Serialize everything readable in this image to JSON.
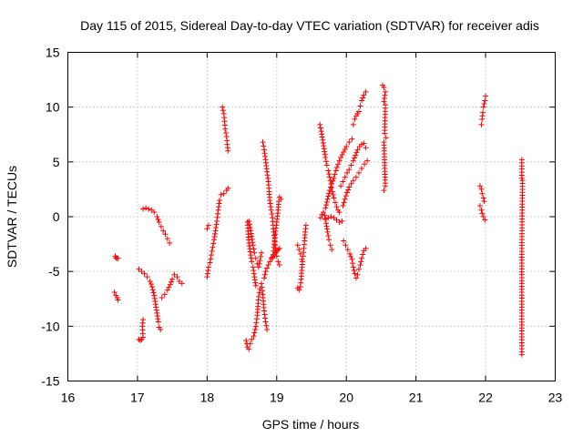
{
  "chart_data": {
    "type": "scatter",
    "title": "Day 115 of 2015, Sidereal Day-to-day VTEC variation (SDTVAR) for receiver adis",
    "xlabel": "GPS time / hours",
    "ylabel": "SDTVAR / TECUs",
    "xlim": [
      16,
      23
    ],
    "ylim": [
      -15,
      15
    ],
    "xticks": [
      "16",
      "17",
      "18",
      "19",
      "20",
      "21",
      "22",
      "23"
    ],
    "yticks": [
      "-15",
      "-10",
      "-5",
      "0",
      "5",
      "10",
      "15"
    ],
    "grid": true,
    "marker": "plus",
    "color": "#ff0000",
    "segments": [
      [
        [
          16.68,
          -3.6
        ],
        [
          16.69,
          -3.75
        ],
        [
          16.7,
          -3.8
        ],
        [
          16.72,
          -3.8
        ]
      ],
      [
        [
          16.67,
          -6.9
        ],
        [
          16.69,
          -7.2
        ],
        [
          16.71,
          -7.4
        ],
        [
          16.72,
          -7.6
        ]
      ],
      [
        [
          17.02,
          -11.2
        ],
        [
          17.04,
          -11.3
        ],
        [
          17.06,
          -11.2
        ],
        [
          17.08,
          -11.0
        ],
        [
          17.07,
          -10.0
        ],
        [
          17.08,
          -9.4
        ]
      ],
      [
        [
          17.02,
          -4.8
        ],
        [
          17.06,
          -5.0
        ],
        [
          17.1,
          -5.2
        ],
        [
          17.14,
          -5.5
        ],
        [
          17.18,
          -5.9
        ],
        [
          17.21,
          -6.4
        ],
        [
          17.24,
          -7.2
        ],
        [
          17.26,
          -8.0
        ],
        [
          17.28,
          -8.8
        ],
        [
          17.3,
          -9.6
        ],
        [
          17.31,
          -10.1
        ],
        [
          17.33,
          -10.3
        ]
      ],
      [
        [
          17.08,
          0.7
        ],
        [
          17.12,
          0.8
        ],
        [
          17.16,
          0.7
        ],
        [
          17.2,
          0.6
        ],
        [
          17.24,
          0.4
        ],
        [
          17.28,
          0.0
        ],
        [
          17.31,
          -0.5
        ],
        [
          17.34,
          -0.9
        ],
        [
          17.37,
          -1.3
        ],
        [
          17.4,
          -1.6
        ],
        [
          17.43,
          -2.0
        ],
        [
          17.46,
          -2.4
        ]
      ],
      [
        [
          17.35,
          -7.4
        ],
        [
          17.39,
          -7.1
        ],
        [
          17.43,
          -6.7
        ],
        [
          17.47,
          -6.2
        ],
        [
          17.5,
          -5.7
        ],
        [
          17.53,
          -5.3
        ],
        [
          17.57,
          -5.5
        ],
        [
          17.6,
          -5.9
        ],
        [
          17.64,
          -6.1
        ]
      ],
      [
        [
          18.0,
          -5.5
        ],
        [
          18.02,
          -4.6
        ],
        [
          18.04,
          -4.2
        ],
        [
          18.06,
          -3.5
        ],
        [
          18.08,
          -2.8
        ],
        [
          18.1,
          -2.1
        ],
        [
          18.12,
          -1.3
        ],
        [
          18.14,
          -0.4
        ],
        [
          18.16,
          0.6
        ],
        [
          18.18,
          1.5
        ],
        [
          18.2,
          2.0
        ],
        [
          18.24,
          2.1
        ],
        [
          18.28,
          2.4
        ],
        [
          18.3,
          2.6
        ]
      ],
      [
        [
          18.0,
          -1.1
        ],
        [
          18.02,
          -0.8
        ]
      ],
      [
        [
          18.22,
          10.0
        ],
        [
          18.24,
          9.4
        ],
        [
          18.25,
          8.7
        ],
        [
          18.26,
          8.0
        ],
        [
          18.28,
          7.3
        ],
        [
          18.29,
          6.6
        ],
        [
          18.3,
          6.0
        ]
      ],
      [
        [
          18.56,
          -11.3
        ],
        [
          18.58,
          -11.9
        ],
        [
          18.6,
          -12.1
        ],
        [
          18.62,
          -11.6
        ],
        [
          18.64,
          -11.2
        ],
        [
          18.67,
          -10.9
        ],
        [
          18.7,
          -10.0
        ],
        [
          18.72,
          -9.0
        ],
        [
          18.73,
          -8.2
        ],
        [
          18.74,
          -7.3
        ],
        [
          18.76,
          -6.6
        ],
        [
          18.78,
          -6.1
        ],
        [
          18.8,
          -7.1
        ],
        [
          18.82,
          -8.6
        ],
        [
          18.84,
          -9.6
        ],
        [
          18.86,
          -10.3
        ]
      ],
      [
        [
          18.58,
          -0.5
        ],
        [
          18.59,
          -1.6
        ],
        [
          18.6,
          -2.4
        ],
        [
          18.62,
          -3.2
        ],
        [
          18.64,
          -4.1
        ],
        [
          18.66,
          -4.6
        ],
        [
          18.68,
          -5.5
        ],
        [
          18.7,
          -6.3
        ]
      ],
      [
        [
          18.6,
          -0.4
        ],
        [
          18.62,
          -1.0
        ],
        [
          18.64,
          -1.8
        ],
        [
          18.66,
          -2.6
        ],
        [
          18.68,
          -3.3
        ],
        [
          18.7,
          -3.8
        ],
        [
          18.72,
          -4.3
        ],
        [
          18.74,
          -4.6
        ],
        [
          18.76,
          -4.0
        ],
        [
          18.78,
          -3.3
        ]
      ],
      [
        [
          18.8,
          6.8
        ],
        [
          18.82,
          6.1
        ],
        [
          18.84,
          5.2
        ],
        [
          18.86,
          4.1
        ],
        [
          18.88,
          3.2
        ],
        [
          18.89,
          2.3
        ],
        [
          18.9,
          1.5
        ],
        [
          18.92,
          0.6
        ],
        [
          18.94,
          -0.1
        ],
        [
          18.95,
          -1.1
        ],
        [
          18.97,
          -2.0
        ],
        [
          18.98,
          -2.9
        ],
        [
          19.0,
          -3.6
        ],
        [
          19.02,
          -4.1
        ],
        [
          19.04,
          -4.4
        ]
      ],
      [
        [
          18.82,
          -5.6
        ],
        [
          18.84,
          -5.0
        ],
        [
          18.86,
          -4.7
        ],
        [
          18.88,
          -4.4
        ],
        [
          18.9,
          -4.1
        ],
        [
          18.92,
          -3.8
        ],
        [
          18.94,
          -3.7
        ],
        [
          18.96,
          -3.5
        ],
        [
          18.98,
          -3.3
        ],
        [
          19.0,
          -3.1
        ],
        [
          19.02,
          -3.0
        ],
        [
          19.04,
          -2.9
        ]
      ],
      [
        [
          18.94,
          -3.8
        ],
        [
          18.96,
          -2.8
        ],
        [
          18.98,
          -1.6
        ],
        [
          19.0,
          -0.5
        ],
        [
          19.02,
          0.6
        ],
        [
          19.03,
          1.4
        ],
        [
          19.04,
          1.8
        ],
        [
          19.06,
          1.6
        ]
      ],
      [
        [
          19.3,
          -6.5
        ],
        [
          19.32,
          -6.7
        ],
        [
          19.34,
          -6.4
        ],
        [
          19.35,
          -5.7
        ],
        [
          19.36,
          -4.9
        ],
        [
          19.37,
          -4.1
        ],
        [
          19.38,
          -3.6
        ],
        [
          19.39,
          -2.9
        ],
        [
          19.4,
          -2.2
        ],
        [
          19.41,
          -1.4
        ],
        [
          19.42,
          -0.8
        ]
      ],
      [
        [
          19.3,
          -2.6
        ],
        [
          19.32,
          -3.0
        ],
        [
          19.34,
          -3.4
        ],
        [
          19.36,
          -3.9
        ]
      ],
      [
        [
          19.62,
          8.4
        ],
        [
          19.64,
          7.8
        ],
        [
          19.66,
          7.0
        ],
        [
          19.68,
          6.2
        ],
        [
          19.7,
          5.4
        ],
        [
          19.72,
          4.7
        ],
        [
          19.74,
          4.2
        ],
        [
          19.76,
          3.6
        ],
        [
          19.78,
          3.0
        ],
        [
          19.8,
          2.3
        ],
        [
          19.82,
          1.7
        ],
        [
          19.84,
          1.3
        ],
        [
          19.86,
          0.9
        ],
        [
          19.88,
          0.6
        ],
        [
          19.9,
          0.4
        ]
      ],
      [
        [
          19.63,
          -0.1
        ],
        [
          19.65,
          0.2
        ],
        [
          19.67,
          0.4
        ],
        [
          19.69,
          0.1
        ],
        [
          19.71,
          -0.6
        ],
        [
          19.73,
          -1.4
        ],
        [
          19.75,
          -2.1
        ],
        [
          19.77,
          -2.6
        ],
        [
          19.79,
          -3.0
        ]
      ],
      [
        [
          19.7,
          0.8
        ],
        [
          19.73,
          1.6
        ],
        [
          19.76,
          2.4
        ],
        [
          19.79,
          3.0
        ],
        [
          19.82,
          3.5
        ],
        [
          19.85,
          4.2
        ],
        [
          19.88,
          4.8
        ],
        [
          19.92,
          5.4
        ],
        [
          19.96,
          5.9
        ],
        [
          20.0,
          6.4
        ],
        [
          20.04,
          6.8
        ],
        [
          20.08,
          7.1
        ]
      ],
      [
        [
          19.7,
          -0.2
        ],
        [
          19.74,
          -0.1
        ],
        [
          19.78,
          0.0
        ],
        [
          19.82,
          -0.1
        ],
        [
          19.86,
          -0.3
        ],
        [
          19.9,
          -0.5
        ],
        [
          19.94,
          -0.4
        ]
      ],
      [
        [
          19.96,
          -2.2
        ],
        [
          19.99,
          -2.6
        ],
        [
          20.02,
          -3.0
        ],
        [
          20.05,
          -3.4
        ],
        [
          20.08,
          -3.9
        ],
        [
          20.1,
          -4.6
        ],
        [
          20.12,
          -5.2
        ],
        [
          20.14,
          -5.6
        ],
        [
          20.16,
          -5.3
        ],
        [
          20.18,
          -4.8
        ],
        [
          20.2,
          -4.4
        ],
        [
          20.22,
          -3.8
        ],
        [
          20.25,
          -3.1
        ],
        [
          20.28,
          -2.9
        ]
      ],
      [
        [
          19.92,
          2.8
        ],
        [
          19.95,
          3.2
        ],
        [
          19.98,
          3.6
        ],
        [
          20.01,
          4.0
        ],
        [
          20.04,
          4.3
        ],
        [
          20.07,
          4.7
        ],
        [
          20.1,
          5.1
        ],
        [
          20.13,
          5.6
        ],
        [
          20.16,
          6.1
        ],
        [
          20.19,
          6.4
        ],
        [
          20.22,
          6.6
        ],
        [
          20.25,
          6.7
        ],
        [
          20.28,
          6.3
        ]
      ],
      [
        [
          19.95,
          1.0
        ],
        [
          19.98,
          1.6
        ],
        [
          20.01,
          2.2
        ],
        [
          20.04,
          2.7
        ],
        [
          20.07,
          3.0
        ],
        [
          20.1,
          3.3
        ],
        [
          20.14,
          3.6
        ],
        [
          20.18,
          4.0
        ],
        [
          20.22,
          4.4
        ],
        [
          20.26,
          4.8
        ],
        [
          20.3,
          5.1
        ]
      ],
      [
        [
          20.1,
          8.4
        ],
        [
          20.12,
          8.9
        ],
        [
          20.14,
          9.2
        ],
        [
          20.16,
          9.4
        ],
        [
          20.18,
          9.6
        ],
        [
          20.2,
          10.1
        ],
        [
          20.22,
          10.6
        ],
        [
          20.25,
          11.1
        ],
        [
          20.28,
          11.4
        ]
      ],
      [
        [
          20.52,
          12.0
        ],
        [
          20.54,
          11.8
        ],
        [
          20.56,
          11.4
        ],
        [
          20.54,
          10.5
        ],
        [
          20.56,
          10.2
        ],
        [
          20.55,
          7.6
        ],
        [
          20.57,
          7.2
        ],
        [
          20.54,
          6.8
        ],
        [
          20.56,
          2.8
        ],
        [
          20.54,
          2.4
        ]
      ],
      [
        [
          21.94,
          8.4
        ],
        [
          21.95,
          8.9
        ],
        [
          21.96,
          9.5
        ],
        [
          21.97,
          10.0
        ],
        [
          21.99,
          10.6
        ],
        [
          22.0,
          11.0
        ]
      ],
      [
        [
          21.92,
          2.8
        ],
        [
          21.94,
          2.5
        ],
        [
          21.95,
          2.1
        ],
        [
          21.97,
          1.7
        ],
        [
          21.98,
          1.4
        ]
      ],
      [
        [
          21.92,
          1.0
        ],
        [
          21.94,
          0.6
        ],
        [
          21.95,
          0.3
        ],
        [
          21.97,
          0.0
        ],
        [
          21.99,
          -0.3
        ]
      ],
      [
        [
          22.52,
          5.2
        ],
        [
          22.52,
          3.5
        ],
        [
          22.53,
          3.3
        ],
        [
          22.52,
          -2.9
        ],
        [
          22.52,
          -6.9
        ],
        [
          22.52,
          -12.6
        ]
      ]
    ]
  }
}
